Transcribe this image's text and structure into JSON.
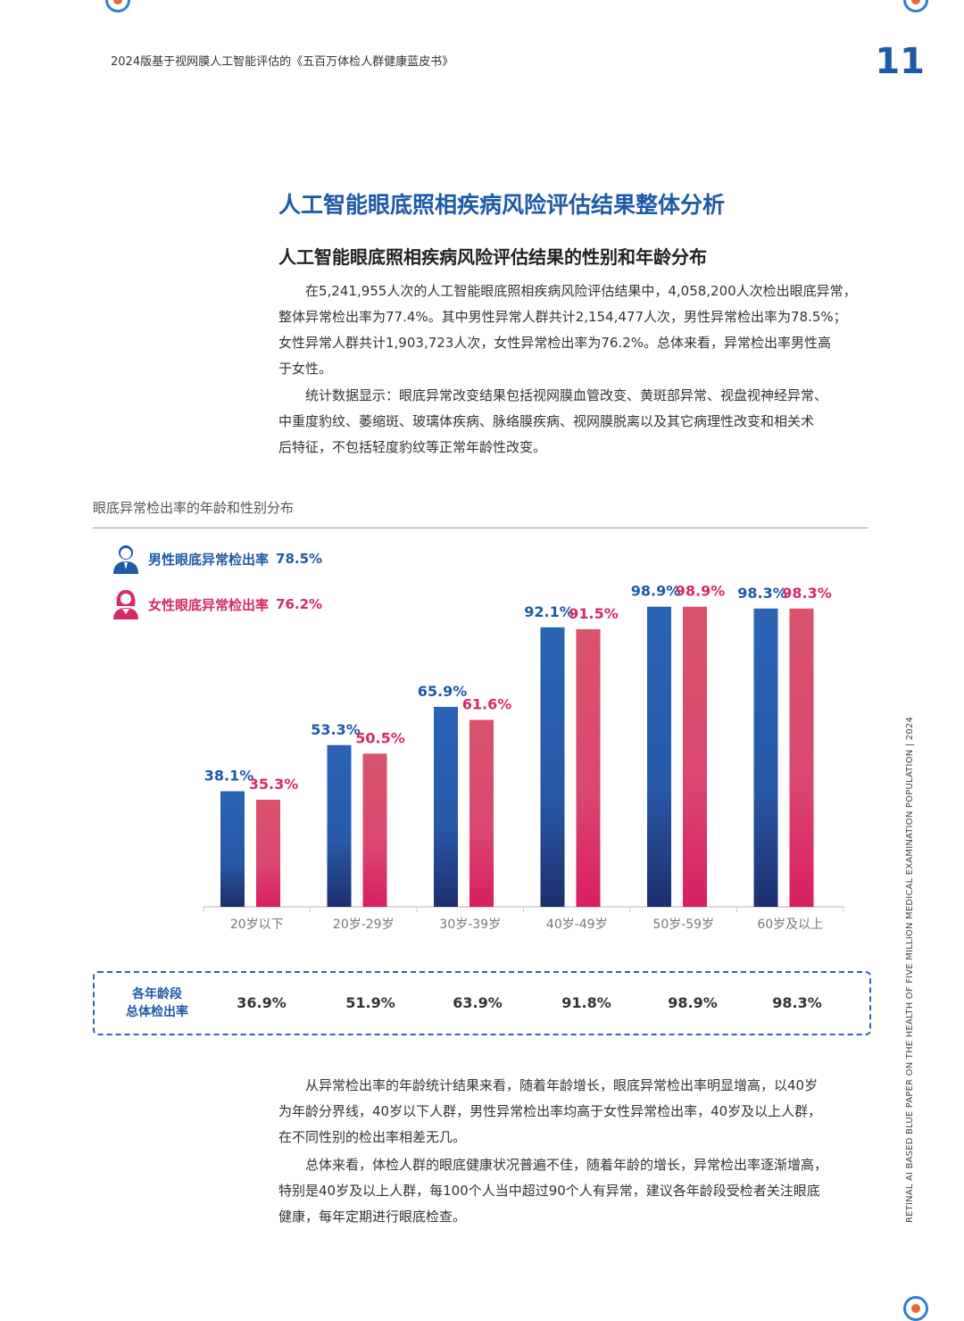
{
  "header": {
    "doc_title": "2024版基于视网膜人工智能评估的《五百万体检人群健康蓝皮书》",
    "page_number": "11"
  },
  "section": {
    "title": "人工智能眼底照相疾病风险评估结果整体分析",
    "subtitle": "人工智能眼底照相疾病风险评估结果的性别和年龄分布"
  },
  "intro": {
    "p1_lines": [
      "在5,241,955人次的人工智能眼底照相疾病风险评估结果中，4,058,200人次检出眼底异常，",
      "整体异常检出率为77.4%。其中男性异常人群共计2,154,477人次，男性异常检出率为78.5%；",
      "女性异常人群共计1,903,723人次，女性异常检出率为76.2%。总体来看，异常检出率男性高",
      "于女性。"
    ],
    "p2_lines": [
      "统计数据显示：眼底异常改变结果包括视网膜血管改变、黄斑部异常、视盘视神经异常、",
      "中重度豹纹、萎缩斑、玻璃体疾病、脉络膜疾病、视网膜脱离以及其它病理性改变和相关术",
      "后特征，不包括轻度豹纹等正常年龄性改变。"
    ]
  },
  "chart_caption": "眼底异常检出率的年龄和性别分布",
  "legend": {
    "male_label": "男性眼底异常检出率",
    "male_value": "78.5%",
    "female_label": "女性眼底异常检出率",
    "female_value": "76.2%"
  },
  "chart_data": {
    "type": "bar",
    "categories": [
      "20岁以下",
      "20岁-29岁",
      "30岁-39岁",
      "40岁-49岁",
      "50岁-59岁",
      "60岁及以上"
    ],
    "series": [
      {
        "name": "男性眼底异常检出率",
        "values": [
          38.1,
          53.3,
          65.9,
          92.1,
          98.9,
          98.3
        ],
        "labels": [
          "38.1%",
          "53.3%",
          "65.9%",
          "92.1%",
          "98.9%",
          "98.3%"
        ],
        "color": "#2a63b5"
      },
      {
        "name": "女性眼底异常检出率",
        "values": [
          35.3,
          50.5,
          61.6,
          91.5,
          98.9,
          98.3
        ],
        "labels": [
          "35.3%",
          "50.5%",
          "61.6%",
          "91.5%",
          "98.9%",
          "98.3%"
        ],
        "color": "#d9536b"
      }
    ],
    "ylim": [
      0,
      100
    ],
    "xlabel": "",
    "ylabel": ""
  },
  "summary": {
    "label_line1": "各年龄段",
    "label_line2": "总体检出率",
    "values": [
      "36.9%",
      "51.9%",
      "63.9%",
      "91.8%",
      "98.9%",
      "98.3%"
    ]
  },
  "analysis": {
    "p1_lines": [
      "从异常检出率的年龄统计结果来看，随着年龄增长，眼底异常检出率明显增高，以40岁",
      "为年龄分界线，40岁以下人群，男性异常检出率均高于女性异常检出率，40岁及以上人群，",
      "在不同性别的检出率相差无几。"
    ],
    "p2_lines": [
      "总体来看，体检人群的眼底健康状况普遍不佳，随着年龄的增长，异常检出率逐渐增高，",
      "特别是40岁及以上人群，每100个人当中超过90个人有异常，建议各年龄段受检者关注眼底",
      "健康，每年定期进行眼底检查。"
    ]
  },
  "side_text": "RETINAL AI BASED BLUE PAPER ON THE HEALTH OF FIVE MILLION MEDICAL EXAMINATION POPULATION  |  2024",
  "icons": [
    "male-person-icon",
    "female-person-icon",
    "decorative-circle-icon"
  ]
}
